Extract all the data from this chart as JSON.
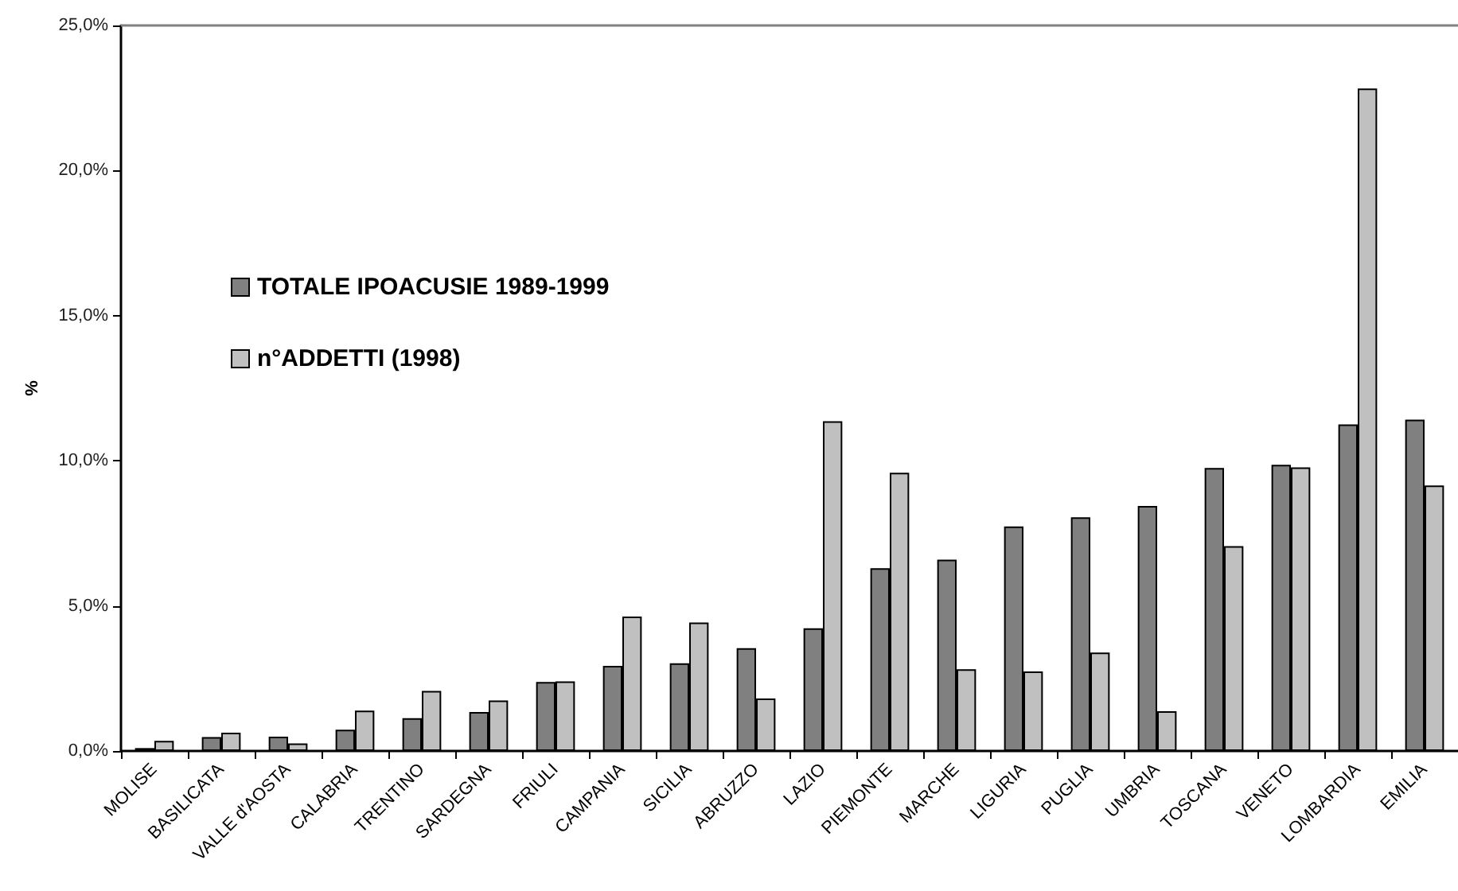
{
  "chart_data": {
    "type": "bar",
    "ylabel": "%",
    "categories": [
      "MOLISE",
      "BASILICATA",
      "VALLE d'AOSTA",
      "CALABRIA",
      "TRENTINO",
      "SARDEGNA",
      "FRIULI",
      "CAMPANIA",
      "SICILIA",
      "ABRUZZO",
      "LAZIO",
      "PIEMONTE",
      "MARCHE",
      "LIGURIA",
      "PUGLIA",
      "UMBRIA",
      "TOSCANA",
      "VENETO",
      "LOMBARDIA",
      "EMILIA"
    ],
    "series": [
      {
        "name": "TOTALE IPOACUSIE 1989-1999",
        "color": "#808080",
        "values": [
          0.1,
          0.48,
          0.49,
          0.73,
          1.13,
          1.34,
          2.38,
          2.93,
          3.02,
          3.54,
          4.23,
          6.3,
          6.59,
          7.74,
          8.05,
          8.44,
          9.75,
          9.86,
          11.25,
          11.42
        ]
      },
      {
        "name": "n°ADDETTI (1998)",
        "color": "#c0c0c0",
        "values": [
          0.35,
          0.63,
          0.26,
          1.39,
          2.07,
          1.74,
          2.4,
          4.63,
          4.43,
          1.81,
          11.36,
          9.59,
          2.82,
          2.74,
          3.39,
          1.37,
          7.06,
          9.77,
          22.83,
          9.15
        ]
      }
    ],
    "ylim": [
      0,
      25
    ],
    "yticks": [
      {
        "value": 0,
        "label": "0,0%"
      },
      {
        "value": 5,
        "label": "5,0%"
      },
      {
        "value": 10,
        "label": "10,0%"
      },
      {
        "value": 15,
        "label": "15,0%"
      },
      {
        "value": 20,
        "label": "20,0%"
      },
      {
        "value": 25,
        "label": "25,0%"
      }
    ],
    "legend": "left"
  }
}
